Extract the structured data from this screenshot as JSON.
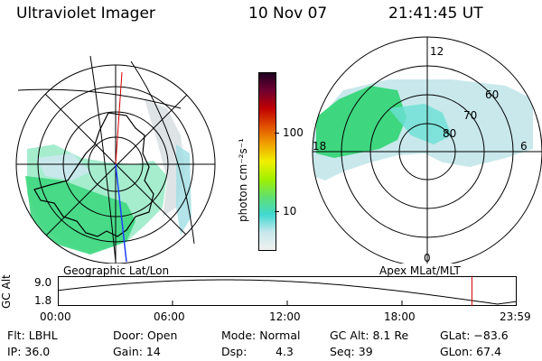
{
  "header": {
    "title": "Ultraviolet Imager",
    "date": "10 Nov 07",
    "time": "21:41:45 UT"
  },
  "left_panel": {
    "label": "Geographic Lat/Lon"
  },
  "right_panel": {
    "label": "Apex  MLat/MLT",
    "mlt_labels": [
      "12",
      "18",
      "6",
      "0"
    ],
    "lat_labels": [
      "60",
      "70",
      "80"
    ]
  },
  "colorbar": {
    "unit_label": "photon cm⁻²s⁻¹",
    "ticks": [
      "100",
      "10"
    ],
    "colors": [
      "#f0f0f0",
      "#c8e8ec",
      "#40d8d0",
      "#60e070",
      "#a0f000",
      "#f0f000",
      "#f0a000",
      "#e05000",
      "#c00000",
      "#700030",
      "#200020"
    ]
  },
  "timeline": {
    "ylabel": "GC Alt",
    "ytick_top": "9.0",
    "ytick_bottom": "1.8",
    "xticks": [
      "00:00",
      "06:00",
      "12:00",
      "18:00",
      "23:59"
    ],
    "marker_time_hours": 21.7
  },
  "info": {
    "filter": "Flt: LBHL",
    "ip": "IP: 36.0",
    "door": "Door: Open",
    "gain": "Gain: 14",
    "mode": "Mode: Normal",
    "dsp_label": "Dsp:",
    "dsp_value": "4.3",
    "gc_alt": "GC Alt: 8.1 Re",
    "seq": "Seq: 39",
    "glat": "GLat: −83.6",
    "glon": "GLon:  67.4"
  }
}
